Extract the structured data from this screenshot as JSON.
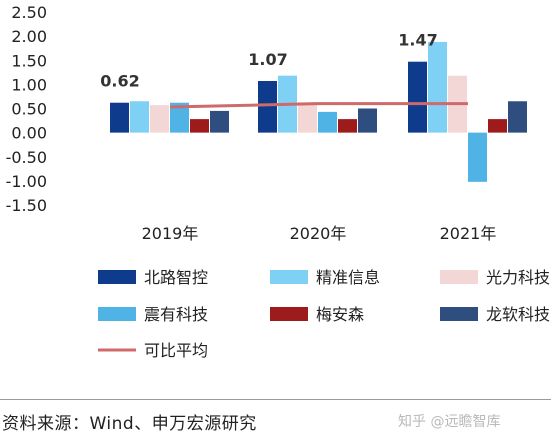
{
  "chart_data": {
    "type": "bar",
    "categories": [
      "2019年",
      "2020年",
      "2021年"
    ],
    "series": [
      {
        "name": "北路智控",
        "color": "#0e3b8c",
        "values": [
          0.62,
          1.07,
          1.47
        ]
      },
      {
        "name": "精准信息",
        "color": "#7fd0f5",
        "values": [
          0.65,
          1.18,
          1.88
        ]
      },
      {
        "name": "光力科技",
        "color": "#f3d7d7",
        "values": [
          0.57,
          0.63,
          1.18
        ]
      },
      {
        "name": "震有科技",
        "color": "#4fb3e6",
        "values": [
          0.62,
          0.43,
          -1.02
        ]
      },
      {
        "name": "梅安森",
        "color": "#9e1b1b",
        "values": [
          0.28,
          0.28,
          0.28
        ]
      },
      {
        "name": "龙软科技",
        "color": "#2f4e80",
        "values": [
          0.45,
          0.5,
          0.65
        ]
      }
    ],
    "line_series": {
      "name": "可比平均",
      "color": "#d06a6a",
      "values": [
        0.53,
        0.6,
        0.6
      ]
    },
    "data_labels": [
      "0.62",
      "1.07",
      "1.47"
    ],
    "y_ticks": [
      "2.50",
      "2.00",
      "1.50",
      "1.00",
      "0.50",
      "0.00",
      "-0.50",
      "-1.00",
      "-1.50"
    ],
    "ylim": [
      -1.5,
      2.5
    ],
    "title": "",
    "xlabel": "",
    "ylabel": "",
    "grid": false,
    "legend_position": "bottom"
  },
  "footer": {
    "source": "资料来源：Wind、申万宏源研究",
    "watermark": "知乎 @远瞻智库"
  }
}
